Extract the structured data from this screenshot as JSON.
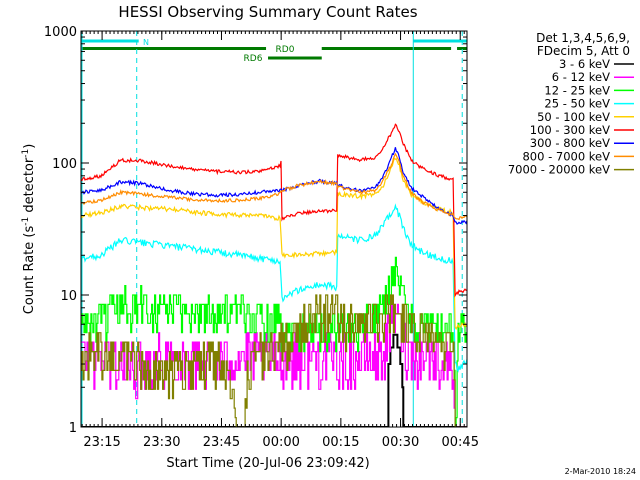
{
  "chart_data": {
    "type": "line",
    "title": "HESSI Observing Summary Count Rates",
    "xlabel": "Start Time (20-Jul-06 23:09:42)",
    "ylabel_main": "Count Rate (s",
    "ylabel_sup1": "-1",
    "ylabel_mid": " detector",
    "ylabel_sup2": "-1",
    "ylabel_end": ")",
    "y_scale": "log",
    "ylim": [
      1,
      1000
    ],
    "x_unit": "minutes after 23:09:42",
    "xlim": [
      0,
      97
    ],
    "xticks": [
      {
        "label": "23:15",
        "value": 5.3
      },
      {
        "label": "23:30",
        "value": 20.3
      },
      {
        "label": "23:45",
        "value": 35.3
      },
      {
        "label": "00:00",
        "value": 50.3
      },
      {
        "label": "00:15",
        "value": 65.3
      },
      {
        "label": "00:30",
        "value": 80.3
      },
      {
        "label": "00:45",
        "value": 95.3
      }
    ],
    "yticks": [
      {
        "label": "1",
        "value": 1
      },
      {
        "label": "10",
        "value": 10
      },
      {
        "label": "100",
        "value": 100
      },
      {
        "label": "1000",
        "value": 1000
      }
    ],
    "legend": {
      "placement": "right",
      "header1": "Det 1,3,4,5,6,9,",
      "header2": "FDecim 5, Att 0"
    },
    "flags": [
      {
        "label": "N",
        "color": "#00e0e0",
        "segments": [
          [
            0,
            14.5
          ],
          [
            83.5,
            97
          ]
        ]
      },
      {
        "label": "RD0",
        "color": "#007a00",
        "segments": [
          [
            0,
            46.5
          ],
          [
            60.5,
            93
          ],
          [
            94.5,
            97
          ]
        ]
      },
      {
        "label": "RD6",
        "color": "#007a00",
        "segments": [
          [
            47,
            60.5
          ]
        ]
      }
    ],
    "markers": [
      {
        "x": 14,
        "style": "dashed",
        "color": "#00e0e0"
      },
      {
        "x": 83.5,
        "style": "solid",
        "color": "#00e0e0"
      },
      {
        "x": 95.8,
        "style": "dashed",
        "color": "#00e0e0"
      }
    ],
    "gaps": [
      [
        50.3,
        50.5
      ],
      [
        64.3,
        64.5
      ],
      [
        94,
        94.8
      ]
    ],
    "series": [
      {
        "name": "3 - 6 keV",
        "color": "#000000",
        "points": [
          [
            0,
            1
          ],
          [
            77,
            1
          ],
          [
            77.2,
            2.5
          ],
          [
            78,
            4.2
          ],
          [
            79,
            5
          ],
          [
            80,
            4
          ],
          [
            80.8,
            2
          ],
          [
            81,
            1
          ],
          [
            97,
            1
          ]
        ]
      },
      {
        "name": "6 - 12 keV",
        "color": "#ff00ff",
        "points": [
          [
            0,
            3.6
          ],
          [
            6,
            3.6
          ],
          [
            12,
            2.8
          ],
          [
            20,
            3.5
          ],
          [
            30,
            3.3
          ],
          [
            40,
            3.5
          ],
          [
            50,
            3.4
          ],
          [
            60,
            3.5
          ],
          [
            70,
            3.3
          ],
          [
            76,
            3.8
          ],
          [
            78,
            6
          ],
          [
            79,
            7.5
          ],
          [
            80,
            6
          ],
          [
            82,
            3.8
          ],
          [
            90,
            3.3
          ],
          [
            93.5,
            3
          ],
          [
            94,
            1
          ],
          [
            97,
            1
          ]
        ]
      },
      {
        "name": "12 - 25 keV",
        "color": "#00ff00",
        "points": [
          [
            0,
            6
          ],
          [
            5,
            6.2
          ],
          [
            10,
            8.5
          ],
          [
            20,
            8
          ],
          [
            30,
            7.5
          ],
          [
            40,
            7.3
          ],
          [
            50,
            7
          ],
          [
            50.5,
            5.5
          ],
          [
            64.3,
            5.8
          ],
          [
            64.5,
            5.8
          ],
          [
            70,
            6
          ],
          [
            75,
            7
          ],
          [
            77,
            10
          ],
          [
            79,
            17
          ],
          [
            80,
            12
          ],
          [
            82,
            7
          ],
          [
            86,
            6
          ],
          [
            90,
            5.5
          ],
          [
            93.5,
            5.5
          ],
          [
            94,
            1
          ],
          [
            94.8,
            5.5
          ],
          [
            97,
            6
          ]
        ]
      },
      {
        "name": "25 - 50 keV",
        "color": "#00ffff",
        "points": [
          [
            0,
            19
          ],
          [
            5,
            20
          ],
          [
            10,
            26
          ],
          [
            15,
            25
          ],
          [
            20,
            24
          ],
          [
            25,
            23
          ],
          [
            30,
            22
          ],
          [
            35,
            21
          ],
          [
            40,
            20
          ],
          [
            45,
            19
          ],
          [
            50,
            18
          ],
          [
            50.5,
            9.5
          ],
          [
            55,
            11
          ],
          [
            60,
            12
          ],
          [
            64.3,
            11.5
          ],
          [
            64.5,
            28
          ],
          [
            70,
            26
          ],
          [
            74,
            28
          ],
          [
            76,
            34
          ],
          [
            78,
            42
          ],
          [
            79,
            46
          ],
          [
            80,
            40
          ],
          [
            81,
            32
          ],
          [
            83,
            24
          ],
          [
            86,
            21
          ],
          [
            90,
            19
          ],
          [
            93.5,
            18
          ],
          [
            94,
            3
          ],
          [
            94.8,
            2.8
          ],
          [
            97,
            3.2
          ]
        ]
      },
      {
        "name": "50 - 100 keV",
        "color": "#ffd000",
        "points": [
          [
            0,
            40
          ],
          [
            5,
            42
          ],
          [
            10,
            47
          ],
          [
            15,
            46
          ],
          [
            20,
            45
          ],
          [
            25,
            44
          ],
          [
            30,
            42
          ],
          [
            35,
            41
          ],
          [
            40,
            40
          ],
          [
            45,
            40
          ],
          [
            50,
            38
          ],
          [
            50.5,
            20
          ],
          [
            64.3,
            21
          ],
          [
            64.5,
            58
          ],
          [
            70,
            56
          ],
          [
            74,
            58
          ],
          [
            76,
            68
          ],
          [
            78,
            90
          ],
          [
            79,
            110
          ],
          [
            80,
            95
          ],
          [
            81,
            75
          ],
          [
            83,
            58
          ],
          [
            86,
            50
          ],
          [
            90,
            45
          ],
          [
            93.5,
            42
          ],
          [
            94,
            5.5
          ],
          [
            94.8,
            5.8
          ],
          [
            97,
            6
          ]
        ]
      },
      {
        "name": "100 - 300 keV",
        "color": "#ff0000",
        "points": [
          [
            0,
            75
          ],
          [
            5,
            80
          ],
          [
            10,
            105
          ],
          [
            15,
            104
          ],
          [
            20,
            98
          ],
          [
            25,
            92
          ],
          [
            30,
            88
          ],
          [
            35,
            86
          ],
          [
            40,
            85
          ],
          [
            45,
            86
          ],
          [
            50,
            95
          ],
          [
            50.3,
            104
          ],
          [
            50.5,
            38
          ],
          [
            55,
            42
          ],
          [
            60,
            43
          ],
          [
            64.3,
            44
          ],
          [
            64.5,
            115
          ],
          [
            70,
            105
          ],
          [
            74,
            110
          ],
          [
            76,
            130
          ],
          [
            78,
            170
          ],
          [
            79,
            195
          ],
          [
            80,
            170
          ],
          [
            81,
            140
          ],
          [
            83,
            105
          ],
          [
            86,
            90
          ],
          [
            90,
            80
          ],
          [
            93.5,
            75
          ],
          [
            94,
            10
          ],
          [
            94.8,
            10.5
          ],
          [
            97,
            11
          ]
        ]
      },
      {
        "name": "300 - 800 keV",
        "color": "#0000ff",
        "points": [
          [
            0,
            60
          ],
          [
            5,
            62
          ],
          [
            10,
            72
          ],
          [
            15,
            70
          ],
          [
            20,
            64
          ],
          [
            25,
            60
          ],
          [
            30,
            58
          ],
          [
            35,
            57
          ],
          [
            40,
            58
          ],
          [
            45,
            60
          ],
          [
            50,
            62
          ],
          [
            50.5,
            62
          ],
          [
            55,
            68
          ],
          [
            60,
            73
          ],
          [
            64.3,
            70
          ],
          [
            64.5,
            68
          ],
          [
            70,
            62
          ],
          [
            74,
            65
          ],
          [
            76,
            80
          ],
          [
            78,
            110
          ],
          [
            79,
            130
          ],
          [
            80,
            110
          ],
          [
            81,
            85
          ],
          [
            83,
            65
          ],
          [
            86,
            55
          ],
          [
            90,
            45
          ],
          [
            93.5,
            40
          ],
          [
            94,
            35
          ],
          [
            97,
            36
          ]
        ]
      },
      {
        "name": "800 - 7000 keV",
        "color": "#ff8c00",
        "points": [
          [
            0,
            50
          ],
          [
            5,
            52
          ],
          [
            10,
            60
          ],
          [
            15,
            58
          ],
          [
            20,
            56
          ],
          [
            25,
            54
          ],
          [
            30,
            52
          ],
          [
            35,
            52
          ],
          [
            40,
            52
          ],
          [
            45,
            54
          ],
          [
            50,
            58
          ],
          [
            50.5,
            62
          ],
          [
            55,
            68
          ],
          [
            60,
            72
          ],
          [
            64.3,
            70
          ],
          [
            64.5,
            66
          ],
          [
            70,
            60
          ],
          [
            74,
            62
          ],
          [
            76,
            74
          ],
          [
            78,
            98
          ],
          [
            79,
            118
          ],
          [
            80,
            100
          ],
          [
            81,
            80
          ],
          [
            83,
            60
          ],
          [
            86,
            50
          ],
          [
            90,
            44
          ],
          [
            93.5,
            40
          ],
          [
            94,
            38
          ],
          [
            97,
            39
          ]
        ]
      },
      {
        "name": "7000 - 20000 keV",
        "color": "#808000",
        "points": [
          [
            0,
            3.7
          ],
          [
            5,
            3.8
          ],
          [
            10,
            3.5
          ],
          [
            15,
            3.2
          ],
          [
            18,
            2.6
          ],
          [
            22,
            2.5
          ],
          [
            25,
            2.8
          ],
          [
            30,
            3.2
          ],
          [
            35,
            3.4
          ],
          [
            38,
            1.8
          ],
          [
            39,
            1
          ],
          [
            41,
            1
          ],
          [
            42,
            2.8
          ],
          [
            45,
            3.8
          ],
          [
            50,
            4.2
          ],
          [
            53,
            5
          ],
          [
            56,
            6
          ],
          [
            58,
            7.2
          ],
          [
            62,
            7.8
          ],
          [
            64.3,
            7.6
          ],
          [
            64.5,
            6.5
          ],
          [
            70,
            5.8
          ],
          [
            75,
            6.2
          ],
          [
            78,
            8.2
          ],
          [
            79,
            9
          ],
          [
            80,
            8
          ],
          [
            82,
            6
          ],
          [
            86,
            5
          ],
          [
            90,
            4.5
          ],
          [
            93.5,
            4.2
          ],
          [
            94,
            1
          ],
          [
            97,
            1
          ]
        ]
      }
    ]
  },
  "footer_date": "2-Mar-2010 18:24"
}
